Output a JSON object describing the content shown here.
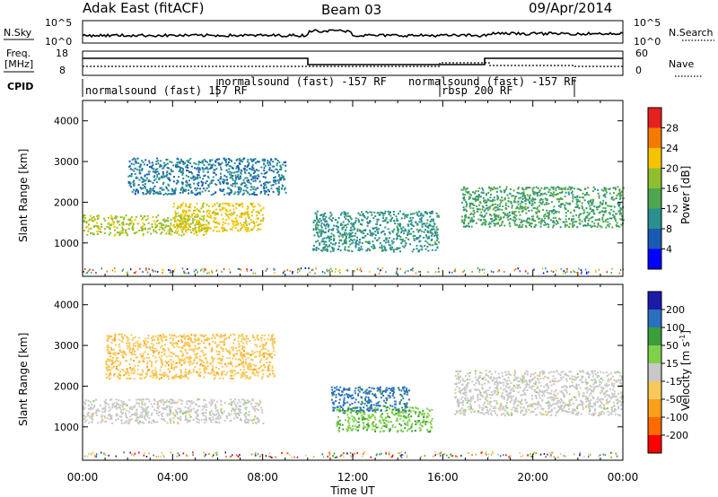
{
  "header": {
    "station": "Adak East (fitACF)",
    "beam": "Beam 03",
    "date": "09/Apr/2014"
  },
  "summary_panel": {
    "left_label": "N.Sky",
    "right_label": "N.Search",
    "yticks_left": [
      "10^5",
      "10^0"
    ],
    "yticks_right": [
      "10^5",
      "10^0"
    ]
  },
  "freq_panel": {
    "left_label_line1": "Freq.",
    "left_label_line2": "[MHz]",
    "right_label": "Nave",
    "yticks_left": [
      "18",
      "8"
    ],
    "yticks_right": [
      "60",
      "0"
    ]
  },
  "cpid": {
    "label": "CPID",
    "segments": [
      {
        "name": "normalsound (fast) 157 RF",
        "start_h": 0,
        "end_h": 6
      },
      {
        "name": "normalsound (fast) -157 RF",
        "start_h": 6,
        "end_h": 16
      },
      {
        "name": "normalsound (fast) -157 RF",
        "start_h": 16,
        "end_h": 22
      },
      {
        "name": "rbsp 200 RF",
        "start_h": 16,
        "end_h": 18
      }
    ]
  },
  "time_axis": {
    "label": "Time UT",
    "ticks": [
      "00:00",
      "04:00",
      "08:00",
      "12:00",
      "16:00",
      "20:00",
      "00:00"
    ]
  },
  "chart_data": [
    {
      "type": "heatmap",
      "title": "",
      "xlabel": "Time UT",
      "ylabel": "Slant Range [km]",
      "xlim": [
        0,
        24
      ],
      "ylim": [
        180,
        4500
      ],
      "yticks": [
        "1000",
        "2000",
        "3000",
        "4000"
      ],
      "colorbar": {
        "label": "Power [dB]",
        "ticks": [
          "28",
          "24",
          "20",
          "16",
          "12",
          "8",
          "4"
        ],
        "range": [
          0,
          30
        ],
        "colors": [
          "#0000ff",
          "#1a5ab5",
          "#2a8f8f",
          "#4ea64e",
          "#8fbf2f",
          "#f5c400",
          "#f57b00",
          "#e82020"
        ]
      },
      "echo_regions": [
        {
          "t_start": 0.0,
          "t_end": 5.5,
          "r_start": 1200,
          "r_end": 1700,
          "level": 18
        },
        {
          "t_start": 4.0,
          "t_end": 8.0,
          "r_start": 1300,
          "r_end": 2000,
          "level": 20
        },
        {
          "t_start": 2.0,
          "t_end": 9.0,
          "r_start": 2200,
          "r_end": 3100,
          "level": 8
        },
        {
          "t_start": 10.2,
          "t_end": 15.8,
          "r_start": 800,
          "r_end": 1800,
          "level": 10
        },
        {
          "t_start": 16.8,
          "t_end": 24.0,
          "r_start": 1400,
          "r_end": 2400,
          "level": 12
        }
      ]
    },
    {
      "type": "heatmap",
      "title": "",
      "xlabel": "Time UT",
      "ylabel": "Slant Range [km]",
      "xlim": [
        0,
        24
      ],
      "ylim": [
        180,
        4500
      ],
      "yticks": [
        "1000",
        "2000",
        "3000",
        "4000"
      ],
      "colorbar": {
        "label": "Velocity [m s^-1]",
        "ticks": [
          "200",
          "100",
          "50",
          "15",
          "-15",
          "-50",
          "-100",
          "-200"
        ],
        "range": [
          -250,
          250
        ],
        "colors": [
          "#ff0000",
          "#ff6a00",
          "#ff9f1a",
          "#f7c95a",
          "#c8c8c8",
          "#7fd14a",
          "#3a9d3a",
          "#2a6fbf",
          "#1a1aa8"
        ]
      },
      "echo_regions": [
        {
          "t_start": 0.0,
          "t_end": 8.0,
          "r_start": 1100,
          "r_end": 1700,
          "level": 0
        },
        {
          "t_start": 1.0,
          "t_end": 8.5,
          "r_start": 2200,
          "r_end": 3300,
          "level": -60
        },
        {
          "t_start": 11.2,
          "t_end": 15.5,
          "r_start": 900,
          "r_end": 1500,
          "level": 70
        },
        {
          "t_start": 11.0,
          "t_end": 14.5,
          "r_start": 1400,
          "r_end": 2000,
          "level": 160
        },
        {
          "t_start": 16.5,
          "t_end": 24.0,
          "r_start": 1300,
          "r_end": 2400,
          "level": 0
        }
      ]
    }
  ]
}
